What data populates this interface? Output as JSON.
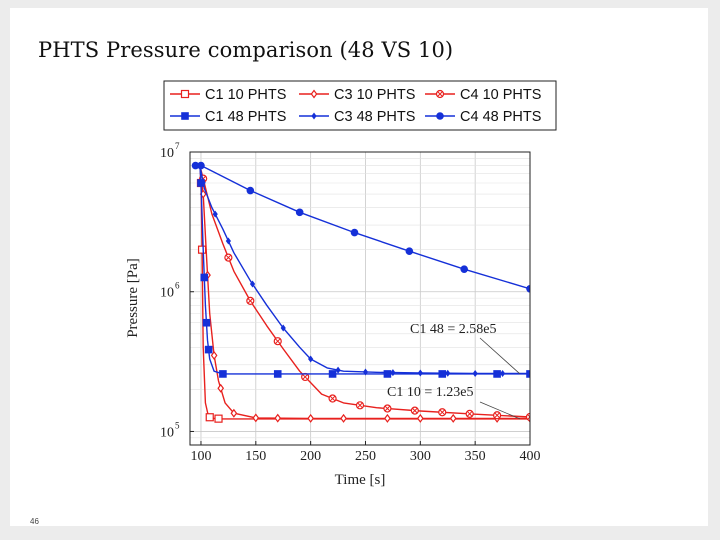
{
  "slide": {
    "title": "PHTS Pressure comparison (48 VS 10)",
    "page_number": "46"
  },
  "chart_data": {
    "type": "line",
    "title": "",
    "xlabel": "Time [s]",
    "ylabel": "Pressure [Pa]",
    "xlim": [
      90,
      400
    ],
    "ylim": [
      80000,
      10000000
    ],
    "yscale": "log",
    "x_ticks": [
      100,
      150,
      200,
      250,
      300,
      350,
      400
    ],
    "x_tick_labels": [
      "100",
      "150",
      "200",
      "250",
      "300",
      "350",
      "400"
    ],
    "y_ticks": [
      100000,
      1000000,
      10000000
    ],
    "y_tick_labels": [
      {
        "base": "10",
        "exp": "5"
      },
      {
        "base": "10",
        "exp": "6"
      },
      {
        "base": "10",
        "exp": "7"
      }
    ],
    "grid": true,
    "legend_position": "top",
    "series": [
      {
        "name": "C1 10 PHTS",
        "color": "#e8211e",
        "marker": "square-open",
        "x": [
          95,
          99,
          100,
          101,
          102,
          104,
          107,
          112,
          120,
          150,
          200,
          250,
          300,
          350,
          400
        ],
        "y": [
          8000000,
          8000000,
          6000000,
          2000000,
          400000,
          160000,
          127000,
          124000,
          123000,
          123000,
          123000,
          123000,
          123000,
          123000,
          123000
        ],
        "marker_x": [
          100,
          101,
          108,
          116
        ]
      },
      {
        "name": "C3 10 PHTS",
        "color": "#e8211e",
        "marker": "diamond-open",
        "x": [
          95,
          99,
          102,
          105,
          108,
          112,
          116,
          122,
          130,
          150,
          200,
          250,
          300,
          350,
          400
        ],
        "y": [
          8000000,
          8000000,
          5000000,
          1800000,
          700000,
          350000,
          230000,
          160000,
          135000,
          125000,
          124000,
          124000,
          124000,
          124000,
          124000
        ],
        "marker_x": [
          102,
          106,
          112,
          118,
          130,
          150,
          170,
          200,
          230,
          270,
          300,
          330,
          370,
          400
        ]
      },
      {
        "name": "C4 10 PHTS",
        "color": "#e8211e",
        "marker": "circle-cross",
        "x": [
          95,
          99,
          103,
          110,
          120,
          130,
          145,
          160,
          175,
          190,
          210,
          230,
          260,
          300,
          350,
          400
        ],
        "y": [
          8000000,
          8000000,
          6000000,
          3600000,
          2200000,
          1400000,
          860000,
          570000,
          390000,
          270000,
          185000,
          160000,
          148000,
          140000,
          133000,
          127000
        ],
        "marker_x": [
          102,
          125,
          145,
          170,
          195,
          220,
          245,
          270,
          295,
          320,
          345,
          370,
          400
        ]
      },
      {
        "name": "C1 48 PHTS",
        "color": "#1530d8",
        "marker": "square-filled",
        "x": [
          95,
          99,
          100,
          102,
          104,
          106,
          108,
          112,
          120,
          150,
          200,
          250,
          300,
          350,
          400
        ],
        "y": [
          8000000,
          8000000,
          6000000,
          2000000,
          800000,
          450000,
          330000,
          270000,
          258000,
          258000,
          258000,
          258000,
          258000,
          258000,
          258000
        ],
        "marker_x": [
          100,
          103,
          105,
          107,
          120,
          170,
          220,
          270,
          320,
          370,
          400
        ]
      },
      {
        "name": "C3 48 PHTS",
        "color": "#1530d8",
        "marker": "diamond-filled",
        "x": [
          95,
          99,
          103,
          110,
          120,
          130,
          145,
          160,
          175,
          190,
          200,
          215,
          230,
          260,
          300,
          350,
          400
        ],
        "y": [
          8000000,
          8000000,
          5500000,
          4000000,
          2800000,
          1900000,
          1200000,
          800000,
          550000,
          400000,
          330000,
          285000,
          270000,
          265000,
          262000,
          260000,
          260000
        ],
        "marker_x": [
          102,
          113,
          125,
          147,
          175,
          200,
          225,
          250,
          275,
          300,
          325,
          350,
          375,
          400
        ]
      },
      {
        "name": "C4 48 PHTS",
        "color": "#1530d8",
        "marker": "circle-filled",
        "x": [
          95,
          100,
          145,
          190,
          240,
          290,
          340,
          400
        ],
        "y": [
          8000000,
          8000000,
          5300000,
          3700000,
          2650000,
          1950000,
          1450000,
          1050000
        ],
        "marker_x": [
          95,
          100,
          145,
          190,
          240,
          290,
          340,
          400
        ]
      }
    ],
    "annotations": [
      {
        "text": "C1 48 = 2.58e5",
        "x": 400,
        "y": 258000
      },
      {
        "text": "C1 10 = 1.23e5",
        "x": 400,
        "y": 123000
      }
    ]
  }
}
